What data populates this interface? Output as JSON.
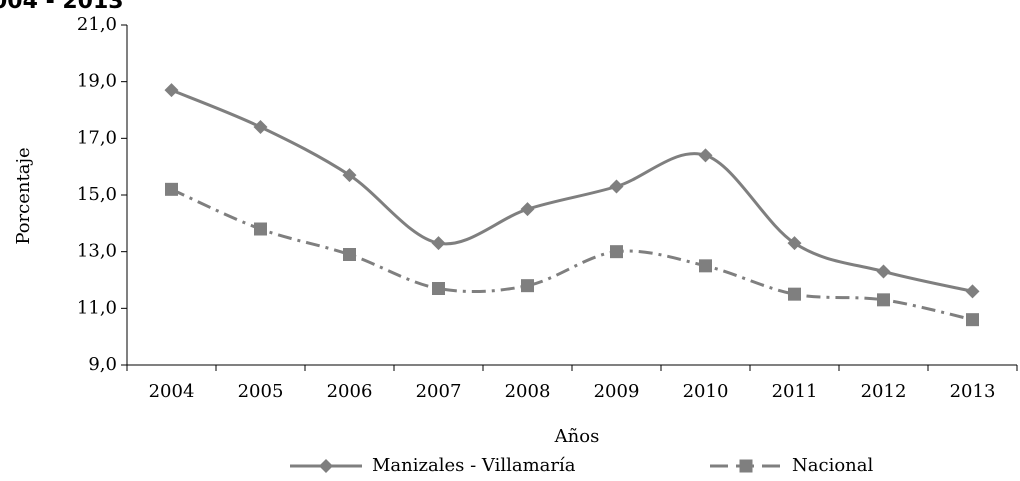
{
  "chart_data": {
    "type": "line",
    "title": "004 - 2013",
    "x_label": "Años",
    "y_label": "Porcentaje",
    "categories": [
      "2004",
      "2005",
      "2006",
      "2007",
      "2008",
      "2009",
      "2010",
      "2011",
      "2012",
      "2013"
    ],
    "series": [
      {
        "name": "Manizales - Villamaría",
        "color": "#7f7f7f",
        "marker": "diamond",
        "dash": "solid",
        "values": [
          18.7,
          17.4,
          15.7,
          13.3,
          14.5,
          15.3,
          16.4,
          13.3,
          12.3,
          11.6
        ]
      },
      {
        "name": "Nacional",
        "color": "#7f7f7f",
        "marker": "square",
        "dash": "dashdot",
        "values": [
          15.2,
          13.8,
          12.9,
          11.7,
          11.8,
          13.0,
          12.5,
          11.5,
          11.3,
          10.6
        ]
      }
    ],
    "ylim": [
      9,
      21
    ],
    "yticks": [
      {
        "value": 9,
        "label": "9,0"
      },
      {
        "value": 11,
        "label": "11,0"
      },
      {
        "value": 13,
        "label": "13,0"
      },
      {
        "value": 15,
        "label": "15,0"
      },
      {
        "value": 17,
        "label": "17,0"
      },
      {
        "value": 19,
        "label": "19,0"
      },
      {
        "value": 21,
        "label": "21,0"
      }
    ],
    "grid": false,
    "legend": "bottom"
  }
}
